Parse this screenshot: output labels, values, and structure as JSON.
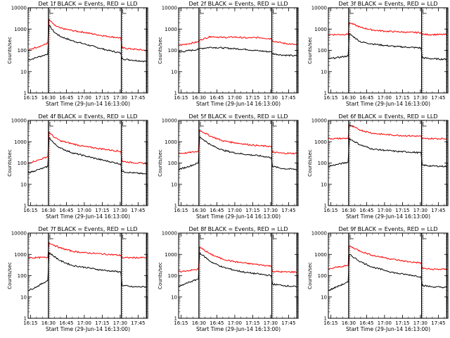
{
  "figure": {
    "xlabel": "Start Time (29-Jun-14 16:13:00)",
    "ylabel": "Counts/sec",
    "x_ticks": [
      "16:15",
      "16:30",
      "16:45",
      "17:00",
      "17:15",
      "17:30",
      "17:45"
    ],
    "x_tick_minutes": [
      15,
      30,
      45,
      60,
      75,
      90,
      105
    ],
    "x_range_minutes": [
      13,
      113
    ],
    "y_ticks": [
      "1",
      "10",
      "100",
      "1000",
      "10000"
    ],
    "y_tick_values": [
      1,
      10,
      100,
      1000,
      10000
    ],
    "y_scale": "log",
    "y_range": [
      1,
      10000
    ],
    "colors": {
      "events": "#000000",
      "lld": "#ff0000"
    }
  },
  "chart_data": [
    {
      "type": "line",
      "title": "Det 1f BLACK = Events, RED = LLD",
      "xlabel": "Start Time (29-Jun-14 16:13:00)",
      "ylabel": "Counts/sec",
      "markers": [
        30,
        91,
        112
      ],
      "series": [
        {
          "name": "Events",
          "color": "#000000",
          "x": [
            13,
            18,
            22,
            26,
            29.5,
            30.5,
            35,
            40,
            50,
            60,
            70,
            80,
            90.5,
            91.5,
            100,
            112
          ],
          "y": [
            35,
            42,
            50,
            58,
            70,
            1500,
            700,
            450,
            280,
            200,
            140,
            100,
            75,
            40,
            35,
            30
          ]
        },
        {
          "name": "LLD",
          "color": "#ff0000",
          "x": [
            13,
            18,
            22,
            26,
            29.5,
            30.5,
            35,
            40,
            50,
            60,
            70,
            80,
            90.5,
            91.5,
            100,
            112
          ],
          "y": [
            100,
            130,
            150,
            180,
            220,
            2800,
            1500,
            1100,
            850,
            700,
            550,
            450,
            380,
            130,
            115,
            100
          ]
        }
      ]
    },
    {
      "type": "line",
      "title": "Det 2f BLACK = Events, RED = LLD",
      "xlabel": "Start Time (29-Jun-14 16:13:00)",
      "ylabel": "Counts/sec",
      "markers": [
        30,
        91,
        112
      ],
      "series": [
        {
          "name": "Events",
          "color": "#000000",
          "x": [
            13,
            20,
            29.5,
            30.5,
            40,
            50,
            60,
            70,
            80,
            90.5,
            91.5,
            100,
            112
          ],
          "y": [
            80,
            95,
            110,
            120,
            140,
            130,
            120,
            110,
            95,
            85,
            70,
            60,
            55
          ]
        },
        {
          "name": "LLD",
          "color": "#ff0000",
          "x": [
            13,
            20,
            29.5,
            30.5,
            40,
            50,
            60,
            70,
            80,
            90.5,
            91.5,
            100,
            112
          ],
          "y": [
            170,
            200,
            250,
            300,
            450,
            400,
            420,
            380,
            400,
            350,
            280,
            220,
            180
          ]
        }
      ]
    },
    {
      "type": "line",
      "title": "Det 3f BLACK = Events, RED = LLD",
      "xlabel": "Start Time (29-Jun-14 16:13:00)",
      "ylabel": "Counts/sec",
      "markers": [
        30,
        91,
        112
      ],
      "series": [
        {
          "name": "Events",
          "color": "#000000",
          "x": [
            13,
            20,
            29.5,
            30.5,
            40,
            50,
            60,
            70,
            80,
            90.5,
            91.5,
            100,
            112
          ],
          "y": [
            40,
            45,
            55,
            600,
            250,
            200,
            170,
            150,
            140,
            130,
            45,
            40,
            38
          ]
        },
        {
          "name": "LLD",
          "color": "#ff0000",
          "x": [
            13,
            20,
            29.5,
            30.5,
            40,
            50,
            60,
            70,
            80,
            90.5,
            91.5,
            100,
            112
          ],
          "y": [
            550,
            550,
            560,
            2000,
            1200,
            900,
            800,
            750,
            700,
            680,
            560,
            550,
            550
          ]
        }
      ]
    },
    {
      "type": "line",
      "title": "Det 4f BLACK = Events, RED = LLD",
      "xlabel": "Start Time (29-Jun-14 16:13:00)",
      "ylabel": "Counts/sec",
      "markers": [
        30,
        91,
        112
      ],
      "series": [
        {
          "name": "Events",
          "color": "#000000",
          "x": [
            13,
            18,
            22,
            26,
            29.5,
            30.5,
            35,
            40,
            50,
            60,
            70,
            80,
            90.5,
            91.5,
            100,
            112
          ],
          "y": [
            35,
            42,
            50,
            58,
            70,
            1600,
            800,
            500,
            300,
            220,
            160,
            120,
            90,
            40,
            35,
            30
          ]
        },
        {
          "name": "LLD",
          "color": "#ff0000",
          "x": [
            13,
            18,
            22,
            26,
            29.5,
            30.5,
            35,
            40,
            50,
            60,
            70,
            80,
            90.5,
            91.5,
            100,
            112
          ],
          "y": [
            100,
            120,
            140,
            170,
            200,
            2800,
            1600,
            1100,
            800,
            600,
            500,
            420,
            350,
            120,
            105,
            95
          ]
        }
      ]
    },
    {
      "type": "line",
      "title": "Det 5f BLACK = Events, RED = LLD",
      "xlabel": "Start Time (29-Jun-14 16:13:00)",
      "ylabel": "Counts/sec",
      "markers": [
        30,
        91,
        112
      ],
      "series": [
        {
          "name": "Events",
          "color": "#000000",
          "x": [
            13,
            20,
            29.5,
            30.5,
            40,
            50,
            60,
            70,
            80,
            90.5,
            91.5,
            100,
            112
          ],
          "y": [
            50,
            65,
            100,
            1700,
            700,
            400,
            300,
            250,
            220,
            180,
            70,
            55,
            50
          ]
        },
        {
          "name": "LLD",
          "color": "#ff0000",
          "x": [
            13,
            20,
            29.5,
            30.5,
            40,
            50,
            60,
            70,
            80,
            90.5,
            91.5,
            100,
            112
          ],
          "y": [
            280,
            300,
            350,
            3500,
            1800,
            1100,
            900,
            750,
            650,
            600,
            320,
            290,
            280
          ]
        }
      ]
    },
    {
      "type": "line",
      "title": "Det 6f BLACK = Events, RED = LLD",
      "xlabel": "Start Time (29-Jun-14 16:13:00)",
      "ylabel": "Counts/sec",
      "markers": [
        30,
        91,
        112
      ],
      "series": [
        {
          "name": "Events",
          "color": "#000000",
          "x": [
            13,
            20,
            29.5,
            30.5,
            40,
            50,
            60,
            70,
            80,
            90.5,
            91.5,
            100,
            112
          ],
          "y": [
            70,
            85,
            110,
            1400,
            700,
            450,
            400,
            350,
            330,
            300,
            80,
            72,
            70
          ]
        },
        {
          "name": "LLD",
          "color": "#ff0000",
          "x": [
            13,
            20,
            29.5,
            30.5,
            40,
            50,
            60,
            70,
            80,
            90.5,
            91.5,
            100,
            112
          ],
          "y": [
            1400,
            1400,
            1450,
            6000,
            3500,
            2500,
            2200,
            2000,
            1900,
            1800,
            1400,
            1400,
            1400
          ]
        }
      ]
    },
    {
      "type": "line",
      "title": "Det 7f BLACK = Events, RED = LLD",
      "xlabel": "Start Time (29-Jun-14 16:13:00)",
      "ylabel": "Counts/sec",
      "markers": [
        30,
        91,
        112
      ],
      "series": [
        {
          "name": "Events",
          "color": "#000000",
          "x": [
            13,
            20,
            29.5,
            30.5,
            40,
            50,
            60,
            70,
            80,
            90.5,
            91.5,
            100,
            112
          ],
          "y": [
            20,
            30,
            60,
            1200,
            500,
            300,
            250,
            200,
            170,
            150,
            35,
            30,
            30
          ]
        },
        {
          "name": "LLD",
          "color": "#ff0000",
          "x": [
            13,
            20,
            29.5,
            30.5,
            40,
            50,
            60,
            70,
            80,
            90.5,
            91.5,
            100,
            112
          ],
          "y": [
            700,
            700,
            720,
            3500,
            2000,
            1400,
            1200,
            1100,
            1000,
            900,
            700,
            700,
            700
          ]
        }
      ]
    },
    {
      "type": "line",
      "title": "Det 8f BLACK = Events, RED = LLD",
      "xlabel": "Start Time (29-Jun-14 16:13:00)",
      "ylabel": "Counts/sec",
      "markers": [
        30,
        91,
        112
      ],
      "series": [
        {
          "name": "Events",
          "color": "#000000",
          "x": [
            13,
            20,
            29.5,
            30.5,
            40,
            50,
            60,
            70,
            80,
            90.5,
            91.5,
            100,
            112
          ],
          "y": [
            30,
            45,
            70,
            1200,
            450,
            250,
            180,
            140,
            120,
            100,
            40,
            35,
            30
          ]
        },
        {
          "name": "LLD",
          "color": "#ff0000",
          "x": [
            13,
            20,
            29.5,
            30.5,
            40,
            50,
            60,
            70,
            80,
            90.5,
            91.5,
            100,
            112
          ],
          "y": [
            150,
            170,
            200,
            2200,
            1000,
            600,
            450,
            380,
            330,
            280,
            160,
            150,
            150
          ]
        }
      ]
    },
    {
      "type": "line",
      "title": "Det 9f BLACK = Events, RED = LLD",
      "xlabel": "Start Time (29-Jun-14 16:13:00)",
      "ylabel": "Counts/sec",
      "markers": [
        30,
        91,
        112
      ],
      "series": [
        {
          "name": "Events",
          "color": "#000000",
          "x": [
            13,
            20,
            29.5,
            30.5,
            40,
            50,
            60,
            70,
            80,
            90.5,
            91.5,
            100,
            112
          ],
          "y": [
            20,
            30,
            50,
            1000,
            450,
            250,
            180,
            130,
            110,
            90,
            35,
            30,
            28
          ]
        },
        {
          "name": "LLD",
          "color": "#ff0000",
          "x": [
            13,
            20,
            29.5,
            30.5,
            40,
            50,
            60,
            70,
            80,
            90.5,
            91.5,
            100,
            112
          ],
          "y": [
            200,
            250,
            300,
            2500,
            1400,
            900,
            700,
            550,
            450,
            400,
            220,
            200,
            200
          ]
        }
      ]
    }
  ]
}
